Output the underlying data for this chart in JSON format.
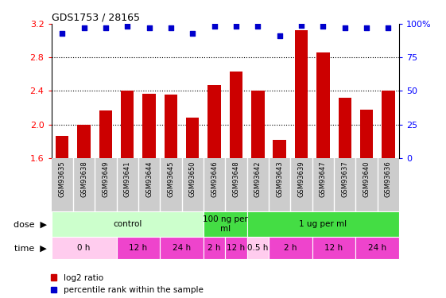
{
  "title": "GDS1753 / 28165",
  "samples": [
    "GSM93635",
    "GSM93638",
    "GSM93649",
    "GSM93641",
    "GSM93644",
    "GSM93645",
    "GSM93650",
    "GSM93646",
    "GSM93648",
    "GSM93642",
    "GSM93643",
    "GSM93639",
    "GSM93647",
    "GSM93637",
    "GSM93640",
    "GSM93636"
  ],
  "log2_ratio": [
    1.86,
    2.0,
    2.17,
    2.4,
    2.37,
    2.36,
    2.08,
    2.47,
    2.63,
    2.4,
    1.82,
    3.12,
    2.86,
    2.32,
    2.18,
    2.4
  ],
  "percentile": [
    93,
    97,
    97,
    98,
    97,
    97,
    93,
    98,
    98,
    98,
    91,
    99,
    98,
    97,
    97,
    97
  ],
  "ylim": [
    1.6,
    3.2
  ],
  "yticks_left": [
    1.6,
    2.0,
    2.4,
    2.8,
    3.2
  ],
  "yticks_right": [
    0,
    25,
    50,
    75,
    100
  ],
  "bar_color": "#CC0000",
  "dot_color": "#0000CC",
  "bg_color": "#FFFFFF",
  "dose_groups": [
    {
      "label": "control",
      "start": 0,
      "end": 7,
      "color": "#CCFFCC"
    },
    {
      "label": "100 ng per\nml",
      "start": 7,
      "end": 9,
      "color": "#44DD44"
    },
    {
      "label": "1 ug per ml",
      "start": 9,
      "end": 16,
      "color": "#44DD44"
    }
  ],
  "time_groups": [
    {
      "label": "0 h",
      "start": 0,
      "end": 3,
      "color": "#FFCCEE"
    },
    {
      "label": "12 h",
      "start": 3,
      "end": 5,
      "color": "#EE44CC"
    },
    {
      "label": "24 h",
      "start": 5,
      "end": 7,
      "color": "#EE44CC"
    },
    {
      "label": "2 h",
      "start": 7,
      "end": 8,
      "color": "#EE44CC"
    },
    {
      "label": "12 h",
      "start": 8,
      "end": 9,
      "color": "#EE44CC"
    },
    {
      "label": "0.5 h",
      "start": 9,
      "end": 10,
      "color": "#FFCCEE"
    },
    {
      "label": "2 h",
      "start": 10,
      "end": 12,
      "color": "#EE44CC"
    },
    {
      "label": "12 h",
      "start": 12,
      "end": 14,
      "color": "#EE44CC"
    },
    {
      "label": "24 h",
      "start": 14,
      "end": 16,
      "color": "#EE44CC"
    }
  ],
  "legend_bar_color": "#CC0000",
  "legend_dot_color": "#0000CC",
  "legend_label_bar": "log2 ratio",
  "legend_label_dot": "percentile rank within the sample",
  "dose_label": "dose",
  "time_label": "time",
  "label_row_color": "#CCCCCC",
  "gridline_color": "#000000"
}
